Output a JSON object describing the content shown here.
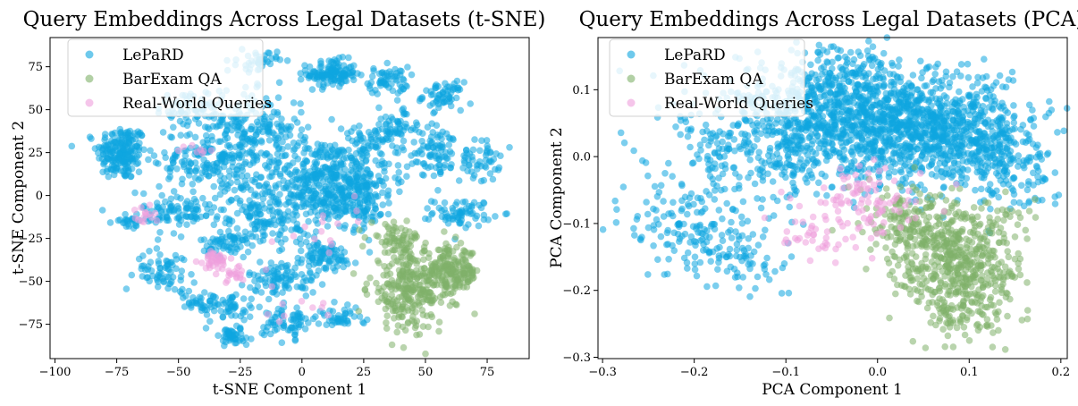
{
  "colors": {
    "lepard": "#0ea5e0",
    "barexam": "#7fb069",
    "realworld": "#ee9fdc"
  },
  "chart_data": [
    {
      "type": "scatter",
      "title": "Query Embeddings Across Legal Datasets (t-SNE)",
      "xlabel": "t-SNE Component 1",
      "ylabel": "t-SNE Component 2",
      "xlim": [
        -102,
        92
      ],
      "ylim": [
        -95,
        92
      ],
      "xticks": [
        -100,
        -75,
        -50,
        -25,
        0,
        25,
        50,
        75
      ],
      "yticks": [
        -75,
        -50,
        -25,
        0,
        25,
        50,
        75
      ],
      "legend_position": "top-left",
      "series": [
        {
          "name": "LePaRD",
          "color_key": "lepard",
          "clusters": [
            {
              "x": -73,
              "y": 25,
              "sx": 5,
              "sy": 8,
              "n": 200
            },
            {
              "x": 12,
              "y": 71,
              "sx": 5,
              "sy": 4,
              "n": 130
            },
            {
              "x": 35,
              "y": 67,
              "sx": 4,
              "sy": 4,
              "n": 60
            },
            {
              "x": 57,
              "y": 58,
              "sx": 4,
              "sy": 4,
              "n": 60
            },
            {
              "x": 55,
              "y": 25,
              "sx": 6,
              "sy": 8,
              "n": 90
            },
            {
              "x": 72,
              "y": 20,
              "sx": 4,
              "sy": 6,
              "n": 50
            },
            {
              "x": 65,
              "y": -10,
              "sx": 6,
              "sy": 4,
              "n": 70
            },
            {
              "x": 8,
              "y": 10,
              "sx": 14,
              "sy": 12,
              "n": 420
            },
            {
              "x": 22,
              "y": -2,
              "sx": 8,
              "sy": 8,
              "n": 150
            },
            {
              "x": -20,
              "y": 40,
              "sx": 10,
              "sy": 10,
              "n": 180
            },
            {
              "x": -38,
              "y": 20,
              "sx": 10,
              "sy": 10,
              "n": 170
            },
            {
              "x": -45,
              "y": 50,
              "sx": 7,
              "sy": 6,
              "n": 60
            },
            {
              "x": -15,
              "y": -10,
              "sx": 10,
              "sy": 9,
              "n": 170
            },
            {
              "x": -50,
              "y": -10,
              "sx": 7,
              "sy": 6,
              "n": 90
            },
            {
              "x": -30,
              "y": -28,
              "sx": 5,
              "sy": 4,
              "n": 60
            },
            {
              "x": -8,
              "y": -48,
              "sx": 7,
              "sy": 5,
              "n": 90
            },
            {
              "x": 8,
              "y": -36,
              "sx": 7,
              "sy": 5,
              "n": 90
            },
            {
              "x": -55,
              "y": -44,
              "sx": 6,
              "sy": 6,
              "n": 70
            },
            {
              "x": -30,
              "y": -65,
              "sx": 6,
              "sy": 4,
              "n": 50
            },
            {
              "x": -5,
              "y": -73,
              "sx": 5,
              "sy": 5,
              "n": 70
            },
            {
              "x": 15,
              "y": -72,
              "sx": 5,
              "sy": 3,
              "n": 40
            },
            {
              "x": -28,
              "y": -82,
              "sx": 5,
              "sy": 3,
              "n": 50
            },
            {
              "x": -40,
              "y": -62,
              "sx": 4,
              "sy": 3,
              "n": 30
            },
            {
              "x": -18,
              "y": 78,
              "sx": 4,
              "sy": 3,
              "n": 40
            },
            {
              "x": 38,
              "y": 40,
              "sx": 5,
              "sy": 5,
              "n": 50
            },
            {
              "x": -70,
              "y": -15,
              "sx": 3,
              "sy": 2,
              "n": 25
            },
            {
              "x": 28,
              "y": 30,
              "sx": 6,
              "sy": 5,
              "n": 60
            }
          ]
        },
        {
          "name": "BarExam QA",
          "color_key": "barexam",
          "clusters": [
            {
              "x": 43,
              "y": -55,
              "sx": 8,
              "sy": 12,
              "n": 260
            },
            {
              "x": 60,
              "y": -45,
              "sx": 6,
              "sy": 7,
              "n": 200
            },
            {
              "x": 38,
              "y": -25,
              "sx": 5,
              "sy": 4,
              "n": 60
            }
          ]
        },
        {
          "name": "Real-World Queries",
          "color_key": "realworld",
          "clusters": [
            {
              "x": -36,
              "y": -38,
              "sx": 3,
              "sy": 3,
              "n": 35
            },
            {
              "x": -28,
              "y": -45,
              "sx": 3,
              "sy": 3,
              "n": 20
            },
            {
              "x": -64,
              "y": -13,
              "sx": 2,
              "sy": 3,
              "n": 15
            },
            {
              "x": -40,
              "y": 28,
              "sx": 3,
              "sy": 2,
              "n": 8
            },
            {
              "x": 10,
              "y": -20,
              "sx": 10,
              "sy": 10,
              "n": 15
            },
            {
              "x": -5,
              "y": -65,
              "sx": 8,
              "sy": 4,
              "n": 10
            }
          ]
        }
      ]
    },
    {
      "type": "scatter",
      "title": "Query Embeddings Across Legal Datasets (PCA)",
      "xlabel": "PCA Component 1",
      "ylabel": "PCA Component 2",
      "xlim": [
        -0.305,
        0.207
      ],
      "ylim": [
        -0.302,
        0.178
      ],
      "xticks": [
        -0.3,
        -0.2,
        -0.1,
        0.0,
        0.1,
        0.2
      ],
      "xtick_labels": [
        "−0.3",
        "−0.2",
        "−0.1",
        "0.0",
        "0.1",
        "0.2"
      ],
      "yticks": [
        -0.3,
        -0.2,
        -0.1,
        0.0,
        0.1
      ],
      "ytick_labels": [
        "−0.3",
        "−0.2",
        "−0.1",
        "0.0",
        "0.1"
      ],
      "legend_position": "top-left",
      "series": [
        {
          "name": "LePaRD",
          "color_key": "lepard",
          "clusters": [
            {
              "x": 0.0,
              "y": 0.05,
              "sx": 0.07,
              "sy": 0.04,
              "n": 1000
            },
            {
              "x": 0.08,
              "y": 0.03,
              "sx": 0.05,
              "sy": 0.035,
              "n": 450
            },
            {
              "x": -0.12,
              "y": 0.02,
              "sx": 0.05,
              "sy": 0.05,
              "n": 300
            },
            {
              "x": -0.2,
              "y": -0.1,
              "sx": 0.035,
              "sy": 0.04,
              "n": 150
            },
            {
              "x": -0.05,
              "y": 0.12,
              "sx": 0.05,
              "sy": 0.025,
              "n": 200
            },
            {
              "x": 0.14,
              "y": -0.02,
              "sx": 0.025,
              "sy": 0.03,
              "n": 100
            },
            {
              "x": -0.15,
              "y": -0.16,
              "sx": 0.03,
              "sy": 0.025,
              "n": 60
            }
          ]
        },
        {
          "name": "BarExam QA",
          "color_key": "barexam",
          "clusters": [
            {
              "x": 0.09,
              "y": -0.16,
              "sx": 0.035,
              "sy": 0.045,
              "n": 500
            },
            {
              "x": 0.04,
              "y": -0.1,
              "sx": 0.03,
              "sy": 0.03,
              "n": 150
            },
            {
              "x": 0.1,
              "y": -0.24,
              "sx": 0.02,
              "sy": 0.02,
              "n": 60
            }
          ]
        },
        {
          "name": "Real-World Queries",
          "color_key": "realworld",
          "clusters": [
            {
              "x": -0.02,
              "y": -0.07,
              "sx": 0.025,
              "sy": 0.025,
              "n": 70
            },
            {
              "x": -0.07,
              "y": -0.12,
              "sx": 0.03,
              "sy": 0.02,
              "n": 40
            },
            {
              "x": 0.02,
              "y": -0.04,
              "sx": 0.02,
              "sy": 0.02,
              "n": 20
            }
          ]
        }
      ]
    }
  ]
}
